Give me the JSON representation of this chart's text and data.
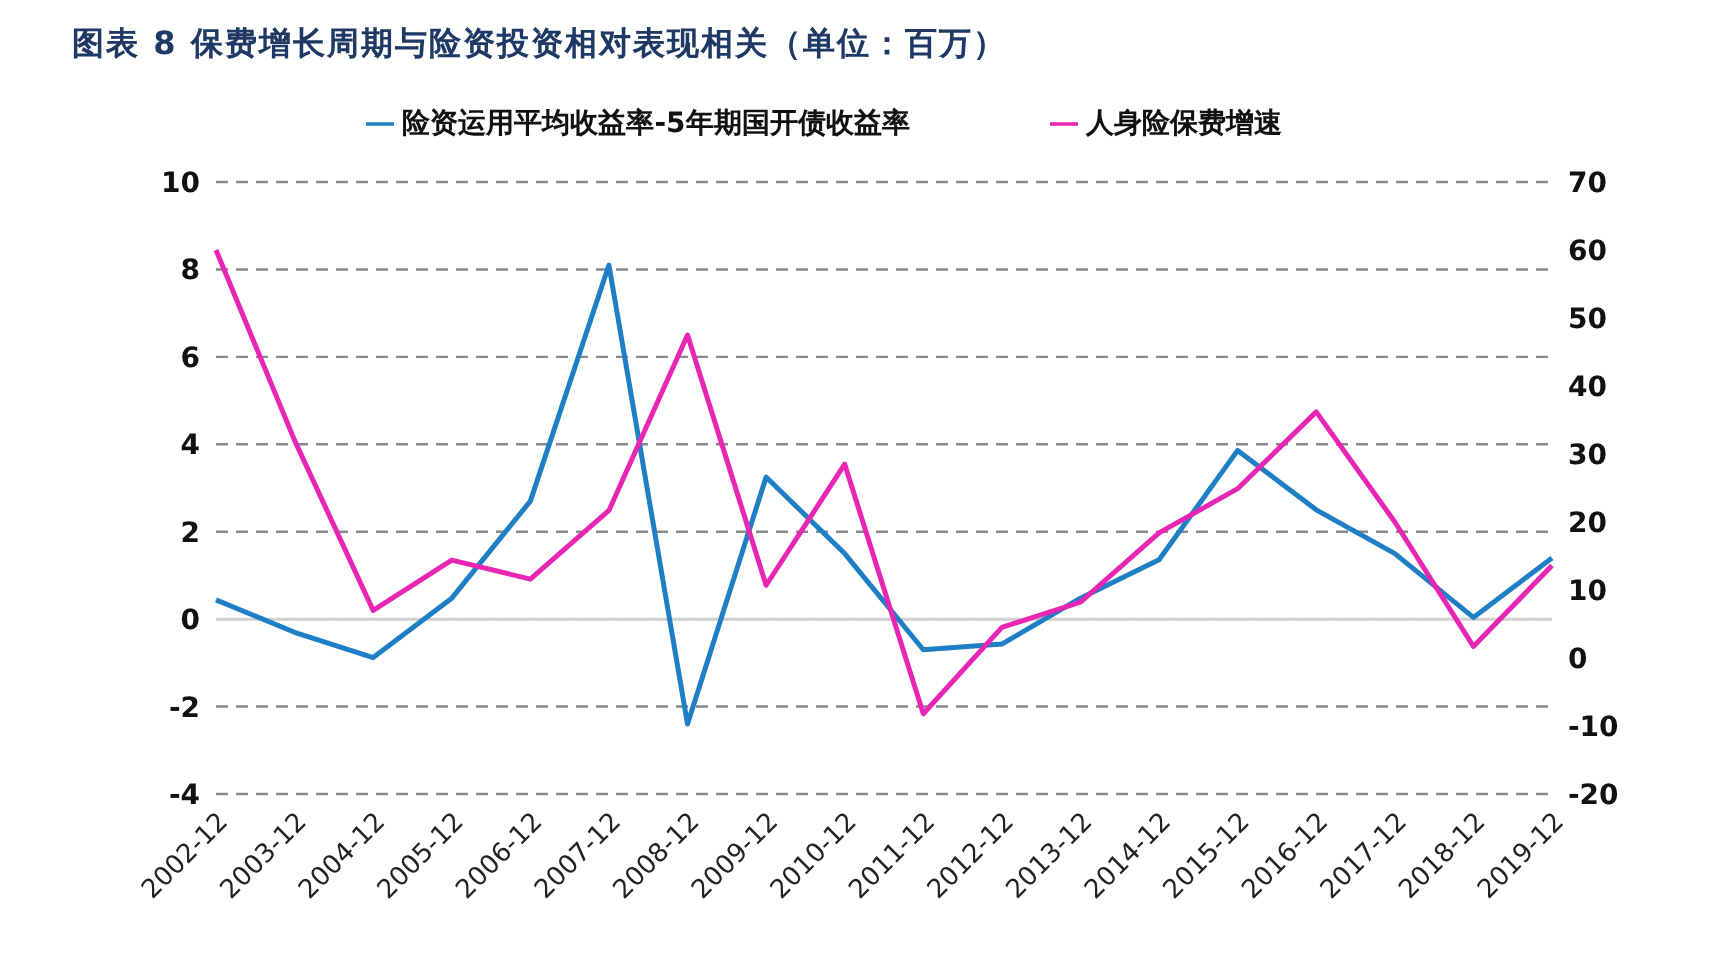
{
  "chart_data": {
    "type": "line",
    "title": "图表 8   保费增长周期与险资投资相对表现相关（单位：百万）",
    "categories": [
      "2002-12",
      "2003-12",
      "2004-12",
      "2005-12",
      "2006-12",
      "2007-12",
      "2008-12",
      "2009-12",
      "2010-12",
      "2011-12",
      "2012-12",
      "2013-12",
      "2014-12",
      "2015-12",
      "2016-12",
      "2017-12",
      "2018-12",
      "2019-12"
    ],
    "series": [
      {
        "name": "险资运用平均收益率-5年期国开债收益率",
        "color": "#1f7fc4",
        "values": [
          0.44,
          -0.3,
          -0.88,
          0.48,
          2.7,
          8.1,
          -2.4,
          3.25,
          1.5,
          -0.7,
          -0.57,
          0.48,
          1.36,
          3.86,
          2.5,
          1.5,
          0.04,
          1.4
        ]
      },
      {
        "name": "人身险保费增速",
        "color": "#e826b4",
        "axis": "y2",
        "values": [
          60,
          32,
          7,
          14.4,
          11.6,
          21.7,
          47.5,
          10.7,
          28.5,
          -8.2,
          4.5,
          8.2,
          18.4,
          24.9,
          36.2,
          20,
          1.7,
          13.6
        ]
      }
    ],
    "ylim": [
      -4,
      10
    ],
    "yticks": [
      -4,
      -2,
      0,
      2,
      4,
      6,
      8,
      10
    ],
    "y2lim": [
      -20,
      70
    ],
    "y2ticks": [
      -20,
      -10,
      0,
      10,
      20,
      30,
      40,
      50,
      60,
      70
    ],
    "ref_lines": [
      {
        "axis": "y",
        "value": 0,
        "color": "#d0d0d0",
        "line_style": "solid"
      }
    ],
    "grid": "y",
    "legend": "top",
    "marker": "none",
    "line_style": "solid"
  }
}
